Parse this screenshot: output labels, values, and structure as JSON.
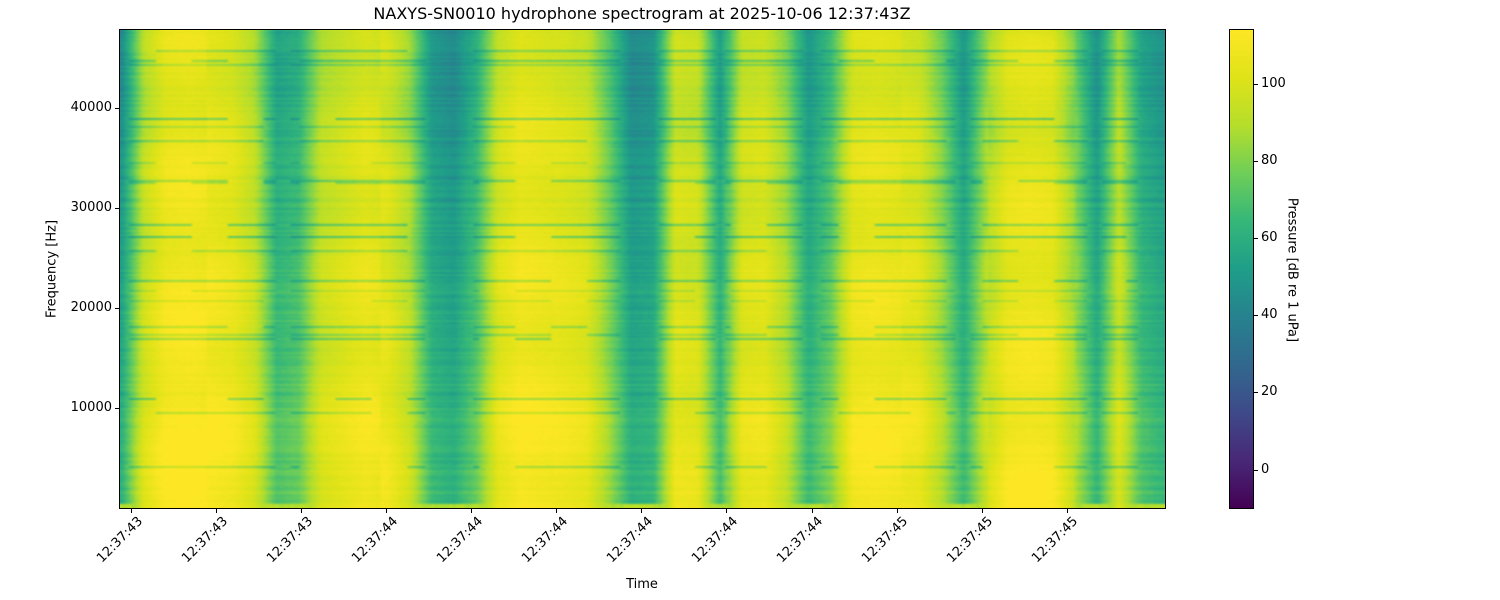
{
  "chart_data": {
    "type": "heatmap",
    "subtype": "spectrogram",
    "title": "NAXYS-SN0010 hydrophone spectrogram at 2025-10-06 12:37:43Z",
    "xlabel": "Time",
    "ylabel": "Frequency [Hz]",
    "x_tick_labels": [
      "12:37:43",
      "12:37:43",
      "12:37:43",
      "12:37:44",
      "12:37:44",
      "12:37:44",
      "12:37:44",
      "12:37:44",
      "12:37:44",
      "12:37:45",
      "12:37:45",
      "12:37:45"
    ],
    "x_tick_start_frac": 0.0105,
    "x_tick_step_frac": 0.0814,
    "y_ticks": [
      10000,
      20000,
      30000,
      40000
    ],
    "y_tick_labels": [
      "10000",
      "20000",
      "30000",
      "40000"
    ],
    "ylim": [
      0,
      47800
    ],
    "grid": false,
    "colormap": "viridis",
    "vmin": -10,
    "vmax": 114,
    "colorbar": {
      "label": "Pressure [dB re 1 uPa]",
      "ticks": [
        0,
        20,
        40,
        60,
        80,
        100
      ],
      "position": "right"
    },
    "viridis_stops": [
      "#440154",
      "#482878",
      "#3e4a89",
      "#31688e",
      "#26828e",
      "#1f9e89",
      "#35b779",
      "#6ece58",
      "#b5de2b",
      "#dfe318",
      "#fde725"
    ],
    "time_envelope_db": [
      55,
      95,
      108,
      110,
      108,
      105,
      95,
      65,
      70,
      95,
      100,
      105,
      102,
      90,
      60,
      55,
      70,
      100,
      108,
      106,
      104,
      100,
      80,
      55,
      58,
      100,
      98,
      62,
      100,
      102,
      88,
      60,
      75,
      105,
      107,
      105,
      102,
      85,
      60,
      90,
      105,
      107,
      105,
      85,
      58,
      95,
      65,
      58
    ],
    "freq_gradient_db": {
      "top_offset": -5,
      "bottom_offset": 7
    },
    "bottom_edge_strip_db": 88,
    "notch_depth_db_range": [
      11,
      24
    ]
  }
}
